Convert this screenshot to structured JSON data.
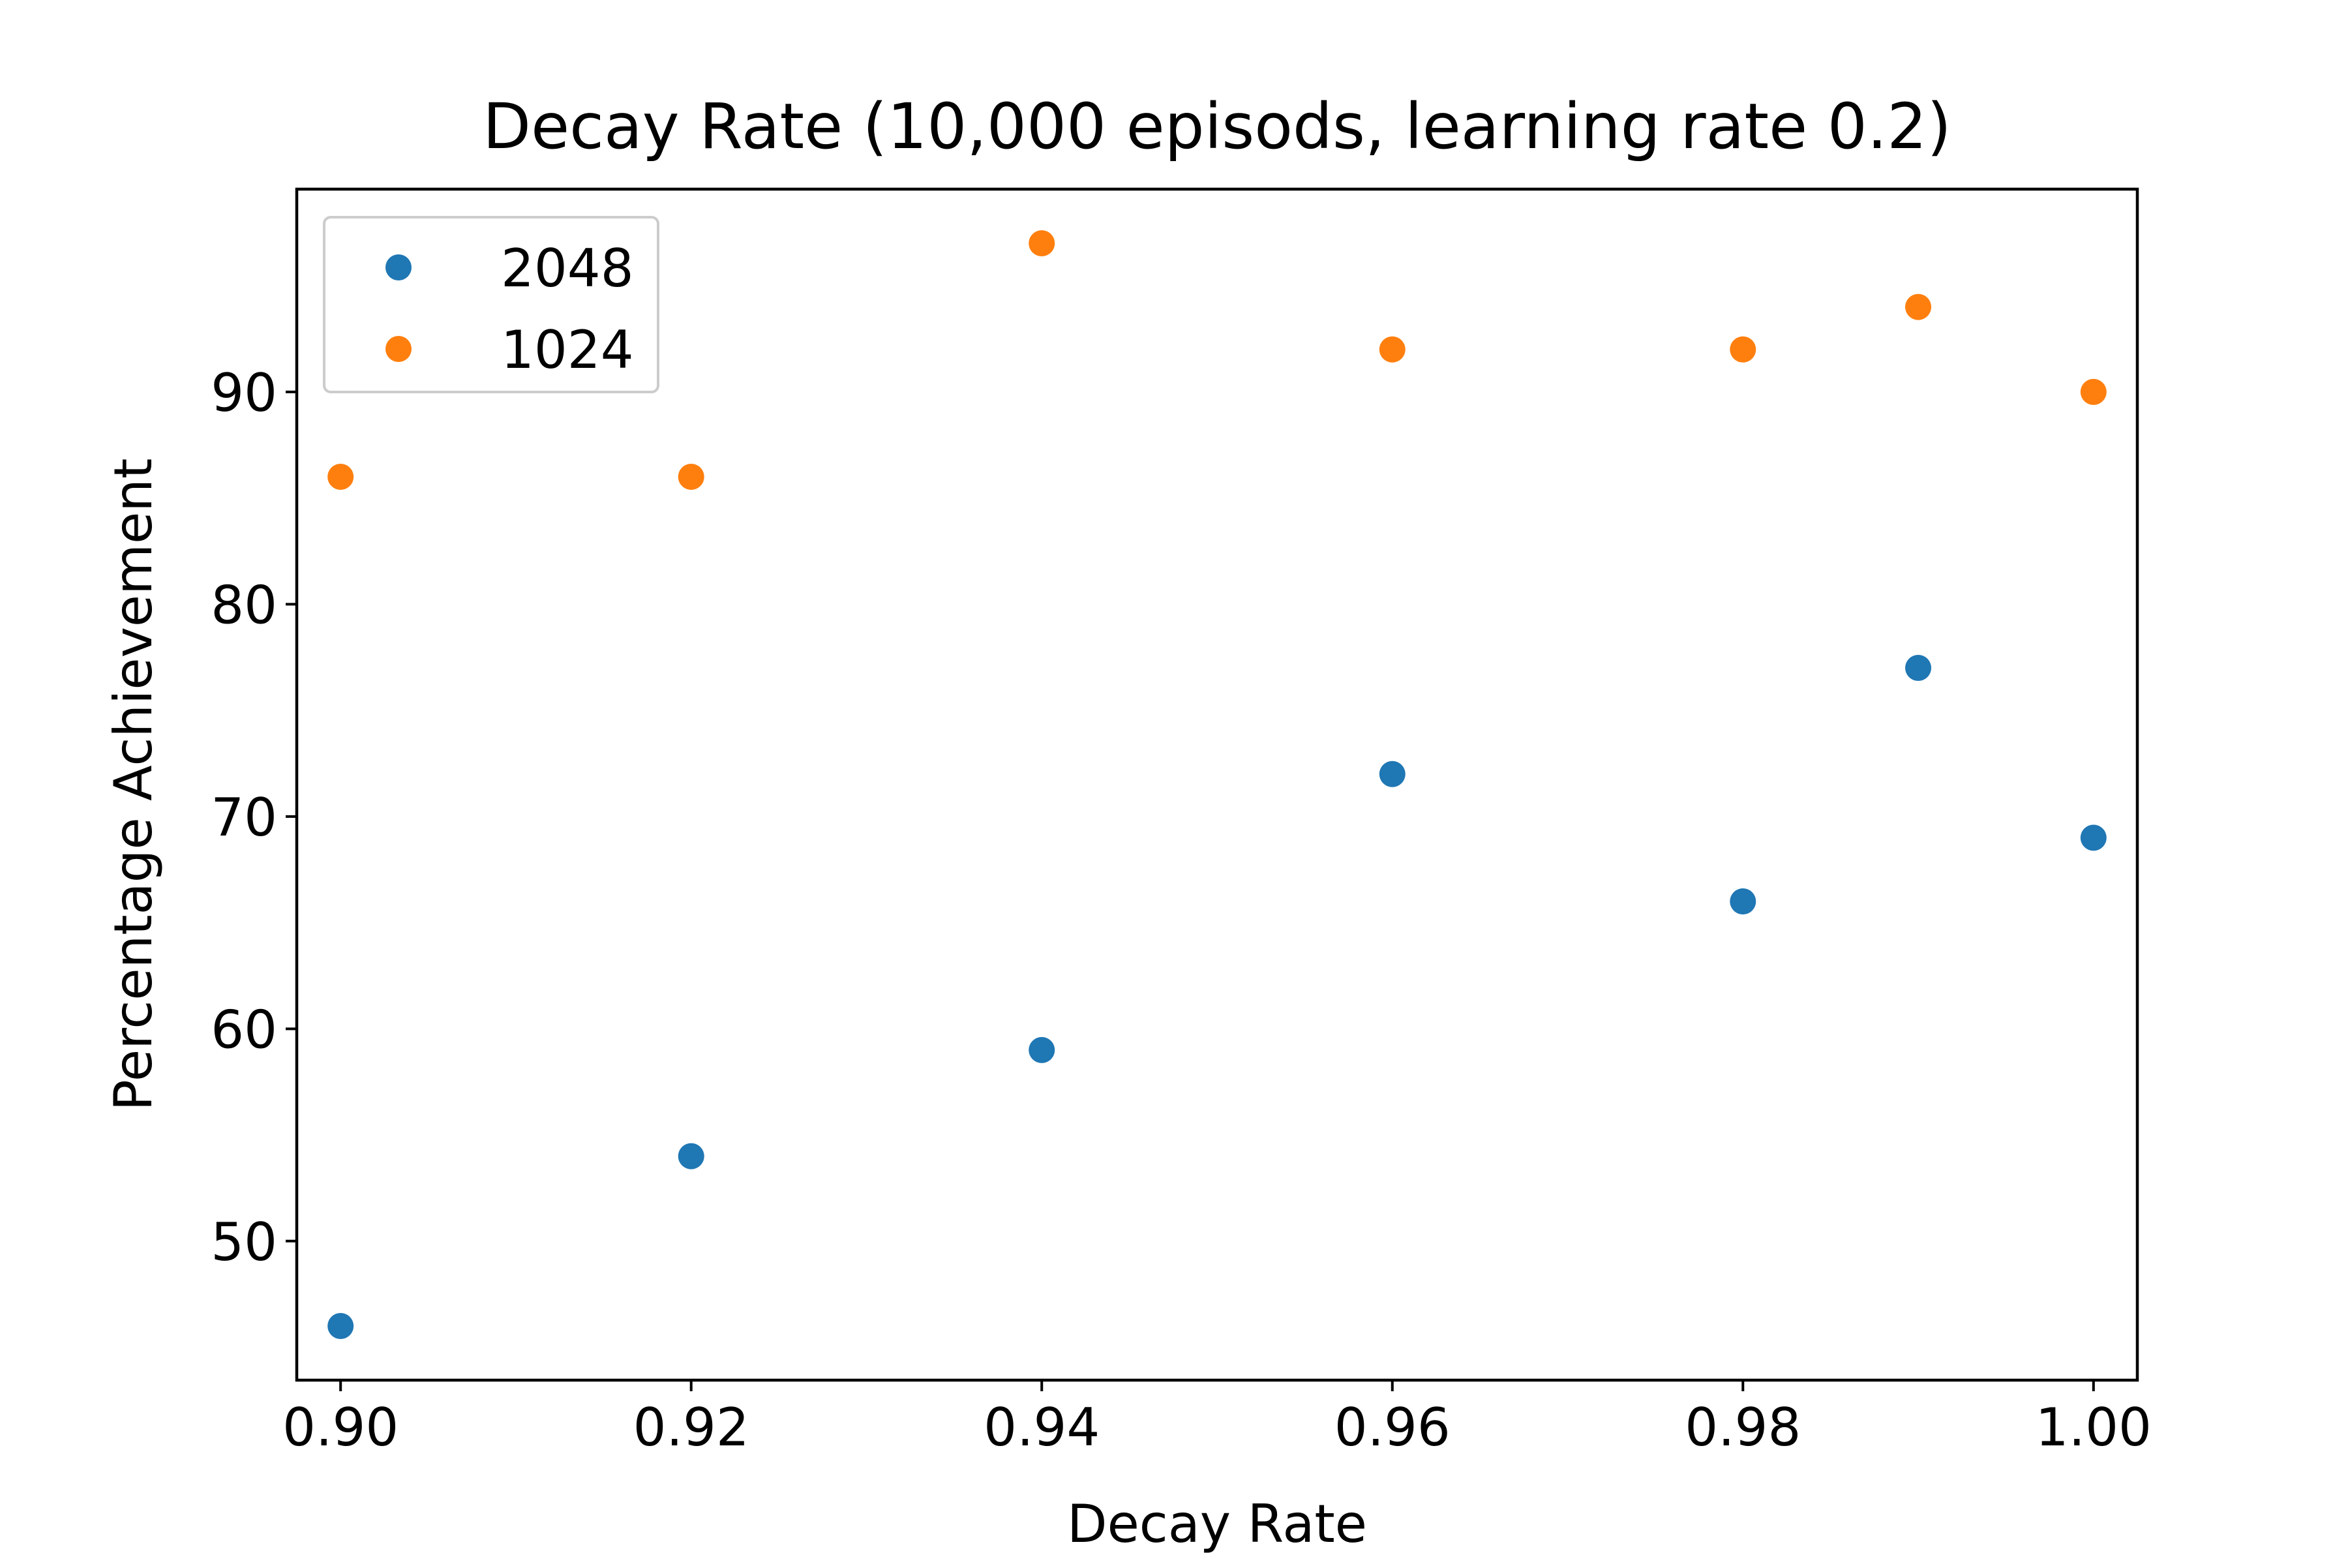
{
  "chart_data": {
    "type": "scatter",
    "title": "Decay Rate (10,000 episods, learning rate 0.2)",
    "xlabel": "Decay Rate",
    "ylabel": "Percentage Achievement",
    "xlim": [
      0.8975,
      1.0025
    ],
    "ylim": [
      43.45,
      99.55
    ],
    "xticks": [
      {
        "value": 0.9,
        "label": "0.90"
      },
      {
        "value": 0.92,
        "label": "0.92"
      },
      {
        "value": 0.94,
        "label": "0.94"
      },
      {
        "value": 0.96,
        "label": "0.96"
      },
      {
        "value": 0.98,
        "label": "0.98"
      },
      {
        "value": 1.0,
        "label": "1.00"
      }
    ],
    "yticks": [
      {
        "value": 50,
        "label": "50"
      },
      {
        "value": 60,
        "label": "60"
      },
      {
        "value": 70,
        "label": "70"
      },
      {
        "value": 80,
        "label": "80"
      },
      {
        "value": 90,
        "label": "90"
      }
    ],
    "grid": false,
    "legend_position": "top-left",
    "series": [
      {
        "name": "2048",
        "color": "#1f77b4",
        "points": [
          {
            "x": 0.9,
            "y": 46
          },
          {
            "x": 0.92,
            "y": 54
          },
          {
            "x": 0.94,
            "y": 59
          },
          {
            "x": 0.96,
            "y": 72
          },
          {
            "x": 0.98,
            "y": 66
          },
          {
            "x": 0.99,
            "y": 77
          },
          {
            "x": 1.0,
            "y": 69
          }
        ]
      },
      {
        "name": "1024",
        "color": "#ff7f0e",
        "points": [
          {
            "x": 0.9,
            "y": 86
          },
          {
            "x": 0.92,
            "y": 86
          },
          {
            "x": 0.94,
            "y": 97
          },
          {
            "x": 0.96,
            "y": 92
          },
          {
            "x": 0.98,
            "y": 92
          },
          {
            "x": 0.99,
            "y": 94
          },
          {
            "x": 1.0,
            "y": 90
          }
        ]
      }
    ]
  }
}
